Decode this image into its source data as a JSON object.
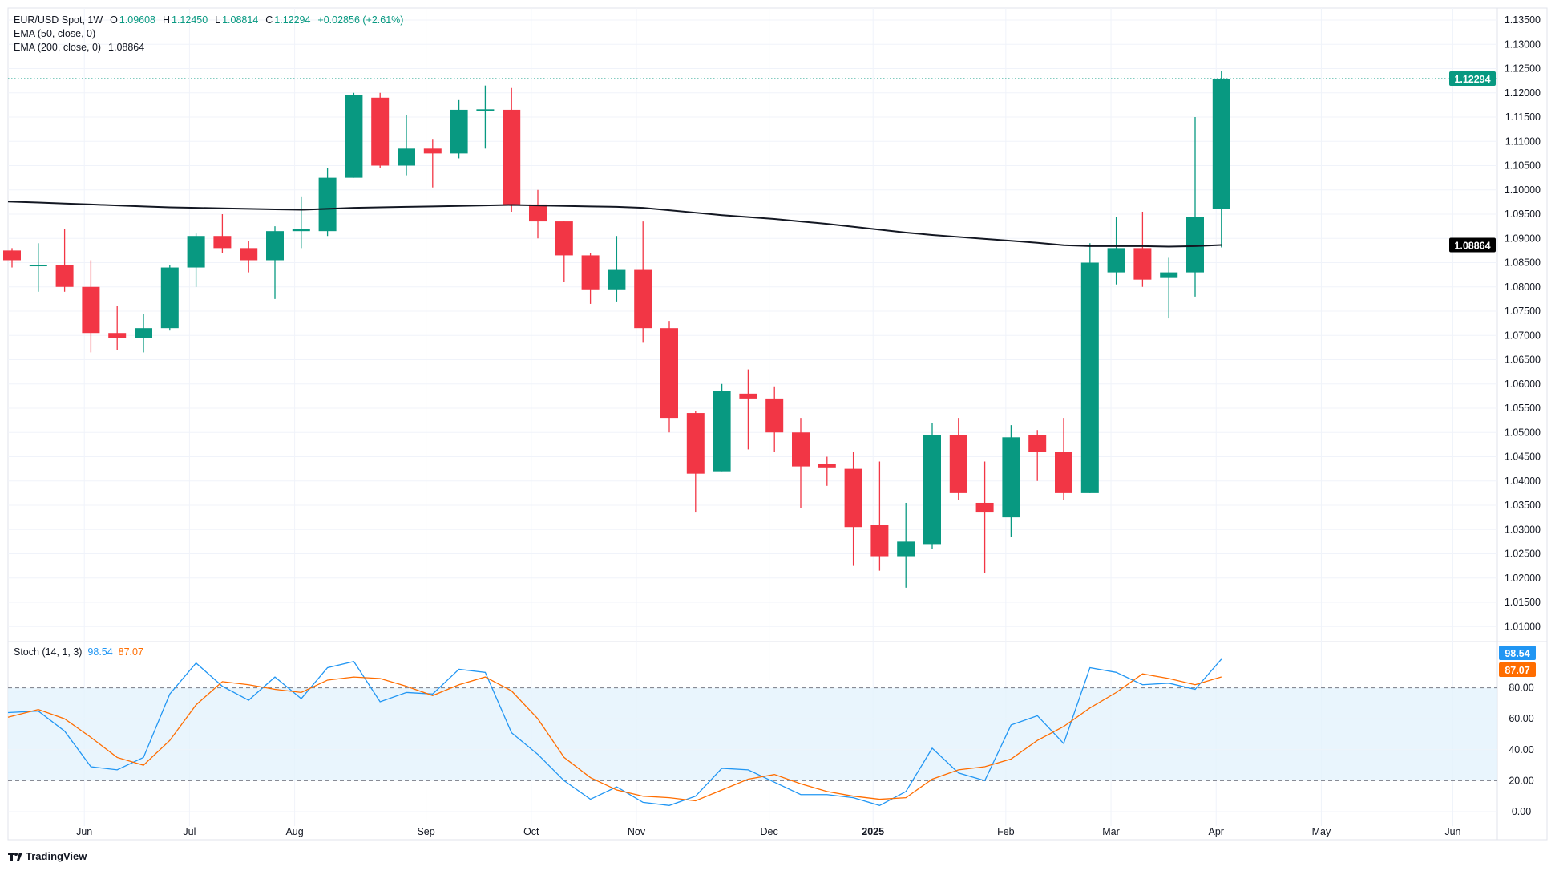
{
  "legend": {
    "symbol": "EUR/USD Spot, 1W",
    "o_label": "O",
    "o": "1.09608",
    "h_label": "H",
    "h": "1.12450",
    "l_label": "L",
    "l": "1.08814",
    "c_label": "C",
    "c": "1.12294",
    "change": "+0.02856 (+2.61%)",
    "ema50": "EMA (50, close, 0)",
    "ema200": "EMA (200, close, 0)",
    "ema200_value": "1.08864"
  },
  "stoch_legend": {
    "label": "Stoch (14, 1, 3)",
    "k": "98.54",
    "d": "87.07"
  },
  "branding": "TradingView",
  "colors": {
    "up": "#089981",
    "down": "#f23645",
    "ema": "#131722",
    "k": "#2196f3",
    "d": "#ff6d00",
    "band": "#e3f2fd"
  },
  "chart_data": [
    {
      "type": "candlestick",
      "title": "EUR/USD Spot, 1W",
      "ylim": [
        1.005,
        1.137
      ],
      "y_ticks": [
        "1.13500",
        "1.13000",
        "1.12500",
        "1.12000",
        "1.11500",
        "1.11000",
        "1.10500",
        "1.10000",
        "1.09500",
        "1.09000",
        "1.08500",
        "1.08000",
        "1.07500",
        "1.07000",
        "1.06500",
        "1.06000",
        "1.05500",
        "1.05000",
        "1.04500",
        "1.04000",
        "1.03500",
        "1.03000",
        "1.02500",
        "1.02000",
        "1.01500",
        "1.01000"
      ],
      "x_labels": [
        "Jun",
        "Jul",
        "Aug",
        "Sep",
        "Oct",
        "Nov",
        "Dec",
        "2025",
        "Feb",
        "Mar",
        "Apr",
        "May",
        "Jun"
      ],
      "last_price_label": "1.12294",
      "ema_label": "1.08864",
      "ohlc": [
        [
          1.0875,
          1.088,
          1.084,
          1.0855
        ],
        [
          1.0845,
          1.089,
          1.079,
          1.0845
        ],
        [
          1.0845,
          1.092,
          1.079,
          1.08
        ],
        [
          1.08,
          1.0855,
          1.0665,
          1.0705
        ],
        [
          1.0705,
          1.076,
          1.067,
          1.0695
        ],
        [
          1.0695,
          1.0745,
          1.0665,
          1.0715
        ],
        [
          1.0715,
          1.0845,
          1.071,
          1.084
        ],
        [
          1.084,
          1.091,
          1.08,
          1.0905
        ],
        [
          1.0905,
          1.095,
          1.087,
          1.088
        ],
        [
          1.088,
          1.0895,
          1.083,
          1.0855
        ],
        [
          1.0855,
          1.0925,
          1.0775,
          1.0915
        ],
        [
          1.0915,
          1.0985,
          1.088,
          1.092
        ],
        [
          1.0915,
          1.1045,
          1.0905,
          1.1025
        ],
        [
          1.1025,
          1.12,
          1.1025,
          1.1195
        ],
        [
          1.119,
          1.12,
          1.1045,
          1.105
        ],
        [
          1.105,
          1.1155,
          1.103,
          1.1085
        ],
        [
          1.1085,
          1.1105,
          1.1005,
          1.1075
        ],
        [
          1.1075,
          1.1185,
          1.1065,
          1.1165
        ],
        [
          1.1163,
          1.1215,
          1.1085,
          1.1166
        ],
        [
          1.1165,
          1.121,
          1.0955,
          1.097
        ],
        [
          1.097,
          1.1,
          1.09,
          1.0935
        ],
        [
          1.0935,
          1.0935,
          1.081,
          1.0865
        ],
        [
          1.0865,
          1.087,
          1.0765,
          1.0795
        ],
        [
          1.0795,
          1.0905,
          1.077,
          1.0835
        ],
        [
          1.0835,
          1.0935,
          1.0685,
          1.0715
        ],
        [
          1.0715,
          1.073,
          1.05,
          1.053
        ],
        [
          1.054,
          1.0545,
          1.0335,
          1.0415
        ],
        [
          1.042,
          1.06,
          1.042,
          1.0585
        ],
        [
          1.058,
          1.063,
          1.0465,
          1.057
        ],
        [
          1.057,
          1.0595,
          1.046,
          1.05
        ],
        [
          1.05,
          1.053,
          1.0345,
          1.043
        ],
        [
          1.0435,
          1.045,
          1.039,
          1.0428
        ],
        [
          1.0425,
          1.046,
          1.0225,
          1.0305
        ],
        [
          1.031,
          1.044,
          1.0215,
          1.0245
        ],
        [
          1.0245,
          1.0355,
          1.018,
          1.0275
        ],
        [
          1.027,
          1.052,
          1.026,
          1.0495
        ],
        [
          1.0495,
          1.053,
          1.036,
          1.0375
        ],
        [
          1.0355,
          1.044,
          1.021,
          1.0335
        ],
        [
          1.0325,
          1.0515,
          1.0285,
          1.049
        ],
        [
          1.0495,
          1.0505,
          1.04,
          1.046
        ],
        [
          1.046,
          1.053,
          1.036,
          1.0375
        ],
        [
          1.0375,
          1.089,
          1.0375,
          1.085
        ],
        [
          1.083,
          1.0945,
          1.0805,
          1.088
        ],
        [
          1.088,
          1.0955,
          1.08,
          1.0815
        ],
        [
          1.082,
          1.086,
          1.0735,
          1.083
        ],
        [
          1.083,
          1.115,
          1.078,
          1.0945
        ],
        [
          1.09608,
          1.1245,
          1.08814,
          1.12294
        ]
      ],
      "ema200": [
        1.0976,
        1.0974,
        1.0972,
        1.097,
        1.0968,
        1.0966,
        1.0964,
        1.0963,
        1.0962,
        1.0961,
        1.096,
        1.0959,
        1.0961,
        1.0963,
        1.0964,
        1.0965,
        1.0966,
        1.0967,
        1.0968,
        1.0969,
        1.0968,
        1.0967,
        1.0966,
        1.0965,
        1.0963,
        1.0958,
        1.0953,
        1.0948,
        1.0944,
        1.094,
        1.0935,
        1.093,
        1.0924,
        1.0918,
        1.0912,
        1.0907,
        1.0903,
        1.0899,
        1.0895,
        1.0891,
        1.0886,
        1.0884,
        1.0884,
        1.0884,
        1.0883,
        1.0884,
        1.08864
      ]
    },
    {
      "type": "line",
      "title": "Stoch (14, 1, 3)",
      "ylim": [
        0,
        100
      ],
      "y_ticks": [
        "80.00",
        "60.00",
        "40.00",
        "20.00",
        "0.00"
      ],
      "band": [
        20,
        80
      ],
      "series": [
        {
          "name": "98.54",
          "values": [
            64,
            65,
            52,
            29,
            27,
            35,
            76,
            96,
            81,
            72,
            87,
            73,
            93,
            97,
            71,
            77,
            76,
            92,
            90,
            51,
            37,
            20,
            8,
            16,
            6,
            4,
            10,
            28,
            27,
            19,
            11,
            11,
            9,
            4,
            13,
            41,
            25,
            20,
            56,
            62,
            44,
            93,
            90,
            82,
            83,
            79,
            98.54
          ]
        },
        {
          "name": "87.07",
          "values": [
            61,
            66,
            60,
            48,
            35,
            30,
            46,
            69,
            84,
            82,
            79,
            77,
            85,
            87,
            86,
            81,
            75,
            82,
            87,
            78,
            60,
            35,
            22,
            14,
            10,
            9,
            7,
            14,
            21,
            24,
            18,
            13,
            10,
            8,
            9,
            21,
            27,
            29,
            34,
            46,
            55,
            67,
            77,
            89,
            86,
            82,
            87.07
          ]
        }
      ]
    }
  ]
}
